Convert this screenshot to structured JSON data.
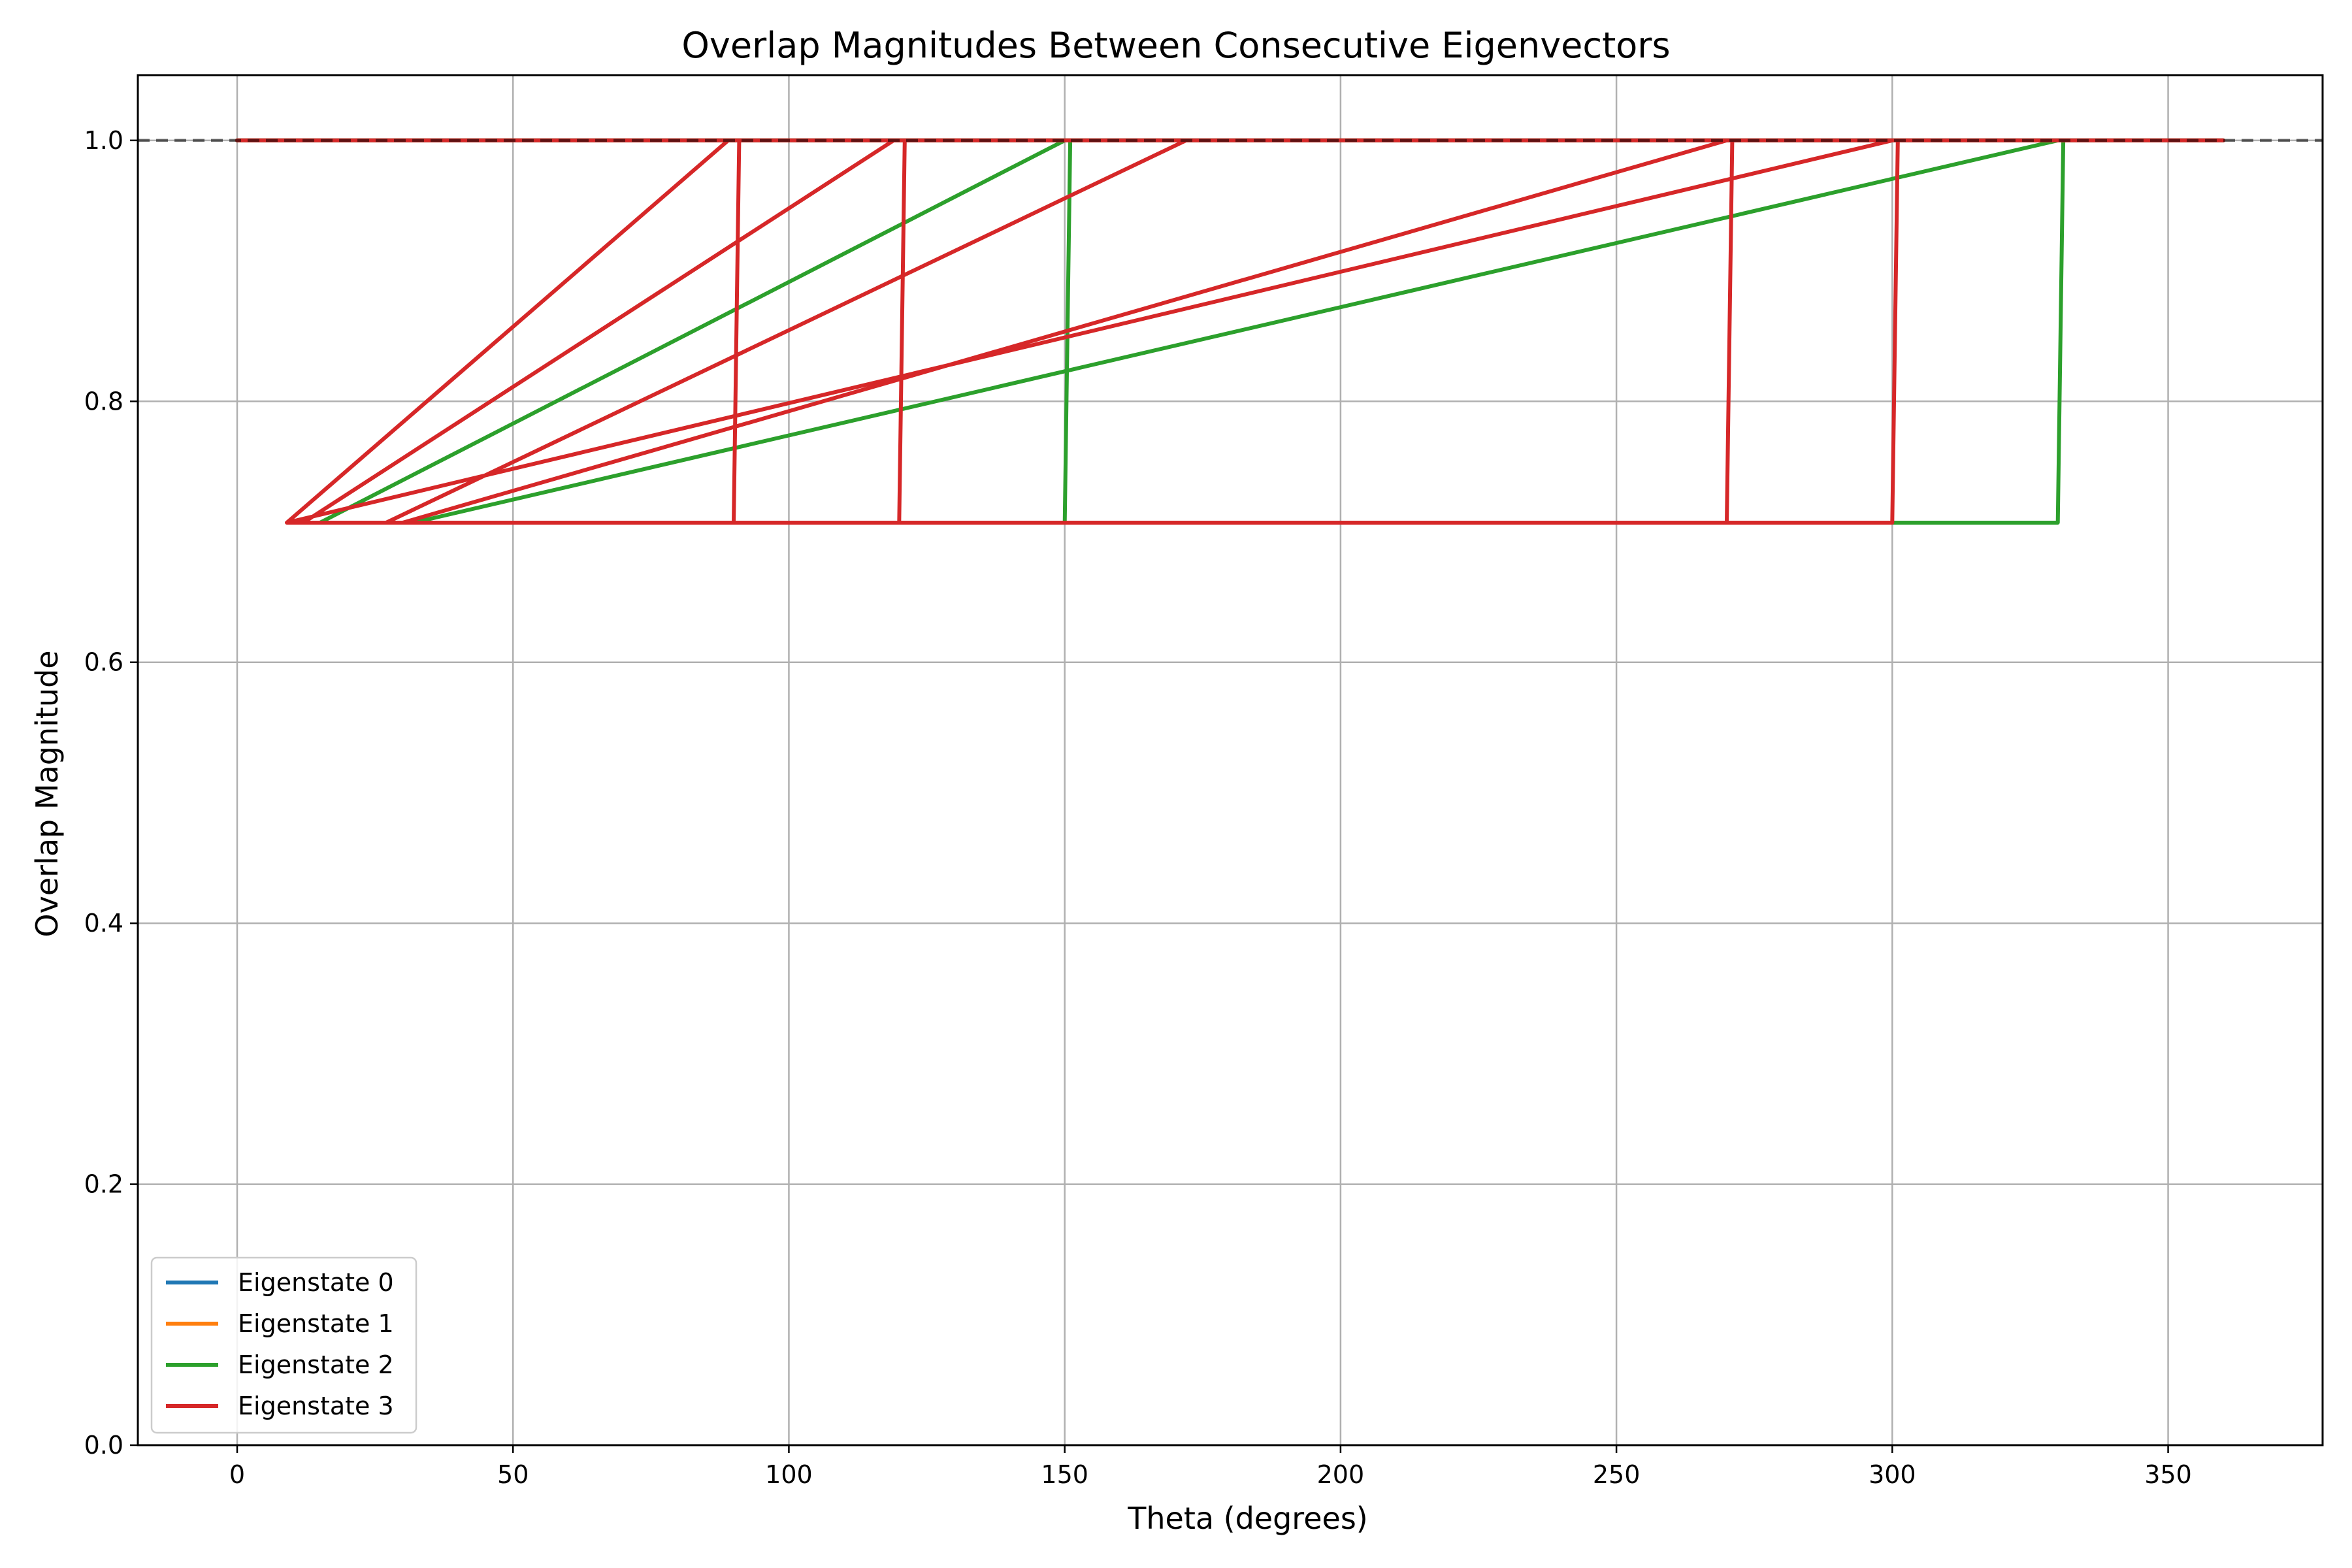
{
  "chart_data": {
    "type": "line",
    "title": "Overlap Magnitudes Between Consecutive Eigenvectors",
    "xlabel": "Theta (degrees)",
    "ylabel": "Overlap Magnitude",
    "xlim": [
      -18,
      378
    ],
    "ylim": [
      0,
      1.05
    ],
    "xticks": [
      0,
      50,
      100,
      150,
      200,
      250,
      300,
      350
    ],
    "yticks": [
      0.0,
      0.2,
      0.4,
      0.6,
      0.8,
      1.0
    ],
    "ytick_labels": [
      "0.0",
      "0.2",
      "0.4",
      "0.6",
      "0.8",
      "1.0"
    ],
    "grid": true,
    "legend_position": "lower-left",
    "reference_line": {
      "y": 1.0,
      "style": "dashed",
      "color": "#555555"
    },
    "series": [
      {
        "name": "Eigenstate 0",
        "color": "#1f77b4",
        "x": [
          0,
          360
        ],
        "y": [
          1.0,
          1.0
        ]
      },
      {
        "name": "Eigenstate 1",
        "color": "#ff7f0e",
        "x": [
          0,
          360
        ],
        "y": [
          1.0,
          1.0
        ]
      },
      {
        "name": "Eigenstate 2",
        "color": "#2ca02c",
        "x": [
          0,
          150,
          151,
          150,
          15,
          150,
          151,
          170,
          330,
          331,
          330,
          32,
          330,
          331,
          360
        ],
        "y": [
          1.0,
          1.0,
          1.0,
          0.707,
          0.707,
          1.0,
          1.0,
          1.0,
          1.0,
          1.0,
          0.707,
          0.707,
          1.0,
          1.0,
          1.0
        ]
      },
      {
        "name": "Eigenstate 3",
        "color": "#d62728",
        "x": [
          0,
          89,
          91,
          90,
          9,
          89,
          91,
          119,
          121,
          120,
          12,
          119,
          121,
          172,
          27,
          172,
          121,
          270,
          271,
          270,
          30,
          270,
          271,
          300,
          301,
          300,
          9,
          300,
          301,
          360
        ],
        "y": [
          1.0,
          1.0,
          1.0,
          0.707,
          0.707,
          1.0,
          1.0,
          1.0,
          1.0,
          0.707,
          0.707,
          1.0,
          1.0,
          1.0,
          0.707,
          1.0,
          1.0,
          1.0,
          1.0,
          0.707,
          0.707,
          1.0,
          1.0,
          1.0,
          1.0,
          0.707,
          0.707,
          1.0,
          1.0,
          1.0
        ]
      }
    ]
  }
}
